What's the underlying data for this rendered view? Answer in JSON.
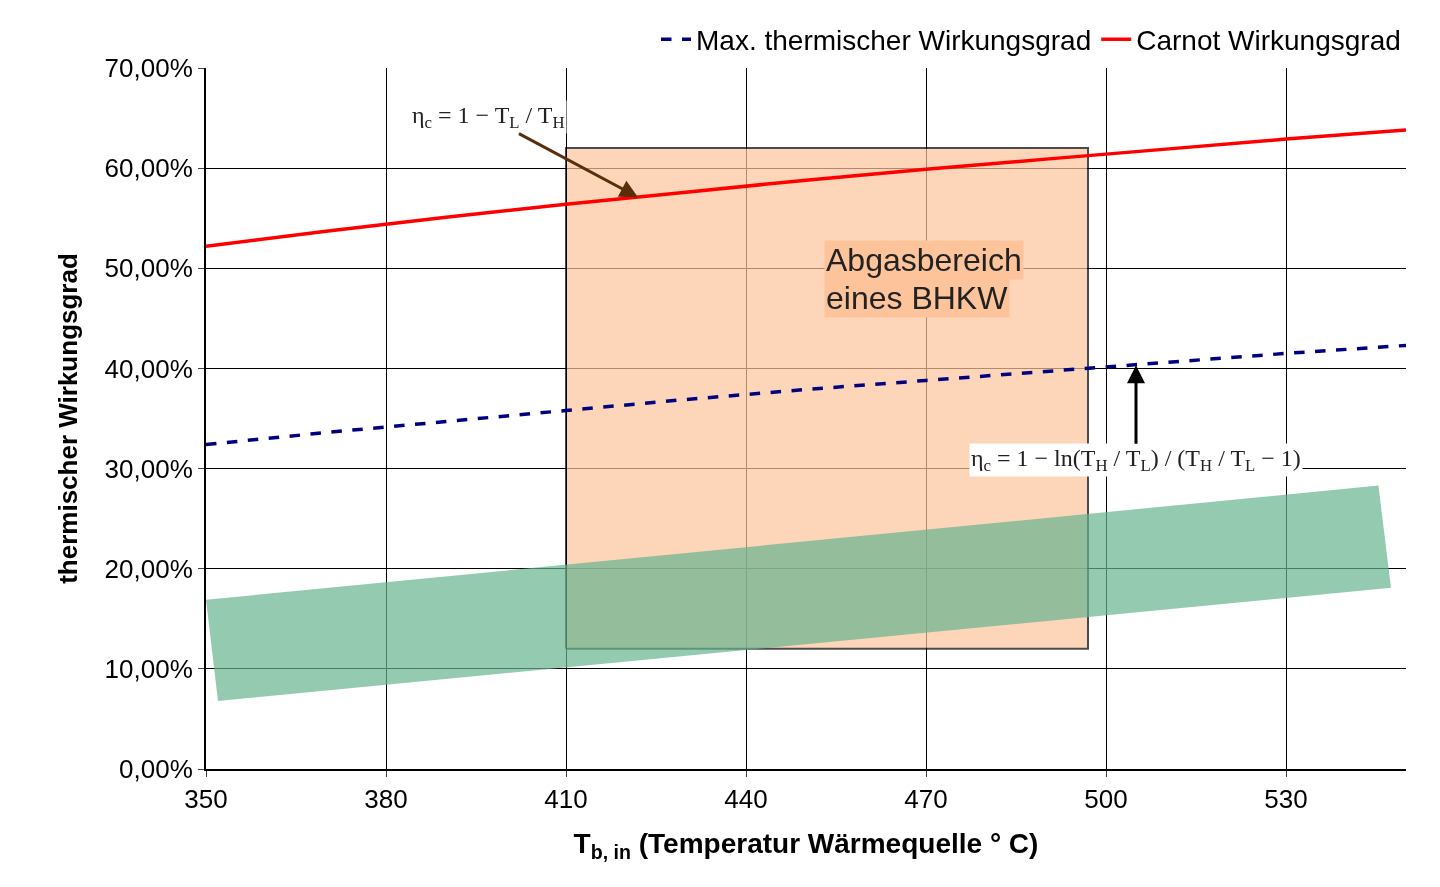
{
  "chart_data": {
    "type": "line",
    "xlabel": "T$_{b, in}$ (Temperatur Wärmequelle ° C)",
    "ylabel": "thermischer Wirkungsgrad",
    "x": [
      350,
      370,
      390,
      410,
      430,
      450,
      470,
      490,
      510,
      530,
      550
    ],
    "series": [
      {
        "name": "Max. thermischer Wirkungsgrad",
        "color": "#000080",
        "line_style": "dashed",
        "values": [
          32.4,
          33.6,
          34.7,
          35.8,
          36.9,
          37.9,
          38.8,
          39.7,
          40.6,
          41.5,
          42.3
        ]
      },
      {
        "name": "Carnot Wirkungsgrad",
        "color": "#ff0000",
        "line_style": "solid",
        "values": [
          52.2,
          53.7,
          55.1,
          56.4,
          57.6,
          58.8,
          59.9,
          60.9,
          61.9,
          62.9,
          63.8
        ]
      },
      {
        "type": "area",
        "color": "#fdc49c",
        "x": [
          410,
          410,
          497,
          497,
          410
        ],
        "values": [
          12,
          62,
          62,
          12,
          12
        ]
      },
      {
        "type": "area",
        "color": "#66b48e",
        "x": [
          350,
          352,
          547.5,
          545.4,
          350
        ],
        "values": [
          16.9,
          6.8,
          18.1,
          28.3,
          16.9
        ]
      }
    ],
    "xlim": [
      350,
      550
    ],
    "xticks": [
      350,
      380,
      410,
      440,
      470,
      500,
      530
    ],
    "ylim": [
      0,
      70
    ],
    "yticks": [
      {
        "value": 0,
        "label": "0,00%"
      },
      {
        "value": 10,
        "label": "10,00%"
      },
      {
        "value": 20,
        "label": "20,00%"
      },
      {
        "value": 30,
        "label": "30,00%"
      },
      {
        "value": 40,
        "label": "40,00%"
      },
      {
        "value": 50,
        "label": "50,00%"
      },
      {
        "value": 60,
        "label": "60,00%"
      },
      {
        "value": 70,
        "label": "70,00%"
      }
    ],
    "grid": true,
    "legend": "top",
    "marker": "none",
    "annotations": [
      {
        "text": "η$_{c}$ = 1 − T$_{L}$ / T$_{H}$",
        "x": 422,
        "y": 57.1
      },
      "η$_{c}$ = 1 − ln(T$_{H}$ / T$_{L}$) / (T$_{H}$ / T$_{L}$ − 1)",
      "Abgasbereich",
      "eines BHKW"
    ]
  }
}
